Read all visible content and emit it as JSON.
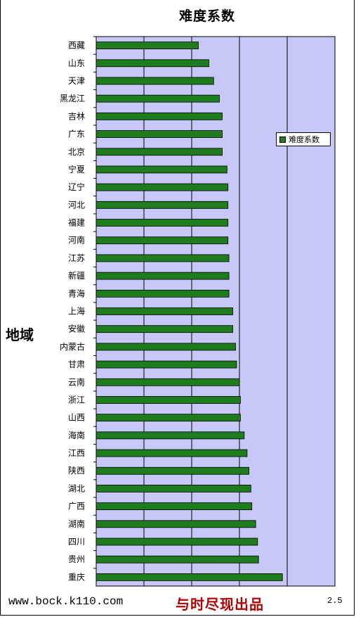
{
  "chart_data": {
    "type": "bar",
    "orientation": "horizontal",
    "title": "难度系数",
    "ylabel": "地域",
    "legend": "top-right",
    "grid": true,
    "xlim": [
      0,
      2.5
    ],
    "xticks_visible": [
      "2.5"
    ],
    "categories": [
      "西藏",
      "山东",
      "天津",
      "黑龙江",
      "吉林",
      "广东",
      "北京",
      "宁夏",
      "辽宁",
      "河北",
      "福建",
      "河南",
      "江苏",
      "新疆",
      "青海",
      "上海",
      "安徽",
      "内蒙古",
      "甘肃",
      "云南",
      "浙江",
      "山西",
      "海南",
      "江西",
      "陕西",
      "湖北",
      "广西",
      "湖南",
      "四川",
      "贵州",
      "重庆"
    ],
    "series": [
      {
        "name": "难度系数",
        "color": "#1e7b1e",
        "values": [
          1.07,
          1.18,
          1.23,
          1.29,
          1.32,
          1.32,
          1.32,
          1.37,
          1.38,
          1.38,
          1.38,
          1.38,
          1.39,
          1.39,
          1.39,
          1.43,
          1.43,
          1.46,
          1.47,
          1.5,
          1.51,
          1.51,
          1.55,
          1.58,
          1.6,
          1.62,
          1.63,
          1.67,
          1.69,
          1.7,
          1.95
        ]
      }
    ]
  },
  "footer": {
    "url": "www.bock.k110.com",
    "brand": "与时尽现出品"
  }
}
